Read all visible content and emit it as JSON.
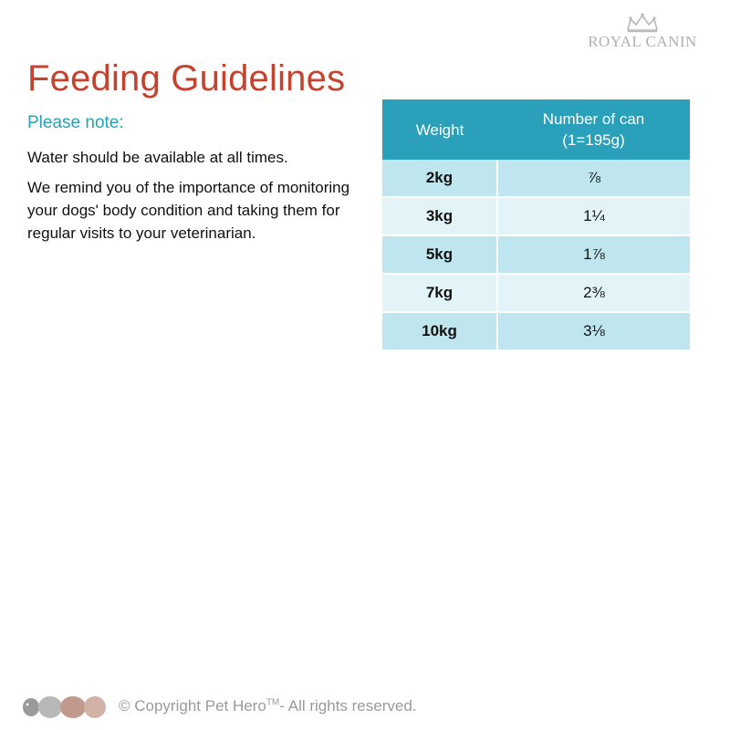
{
  "brand": {
    "name": "ROYAL CANIN"
  },
  "title": "Feeding Guidelines",
  "subtitle": "Please note:",
  "notes": [
    "Water should be available at all times.",
    "We remind you of the importance of monitoring your dogs' body condition and taking them for regular visits to your veterinarian."
  ],
  "table": {
    "headers": {
      "weight": "Weight",
      "cans_line1": "Number of can",
      "cans_line2": "(1=195g)"
    },
    "rows": [
      {
        "weight": "2kg",
        "cans": "⅞"
      },
      {
        "weight": "3kg",
        "cans": "1¼"
      },
      {
        "weight": "5kg",
        "cans": "1⅞"
      },
      {
        "weight": "7kg",
        "cans": "2⅜"
      },
      {
        "weight": "10kg",
        "cans": "3⅛"
      }
    ]
  },
  "footer": {
    "copyright_prefix": "© Copyright Pet Hero",
    "trademark": "TM",
    "copyright_suffix": "- All rights reserved."
  },
  "colors": {
    "title": "#c5432e",
    "subtitle": "#28a0b8",
    "header_bg": "#2aa0bb",
    "row_dark": "#bfe5ee",
    "row_light": "#e2f4f8"
  },
  "icons": {
    "brand": "crown-icon",
    "footer_logo": "pet-hero-logo"
  }
}
